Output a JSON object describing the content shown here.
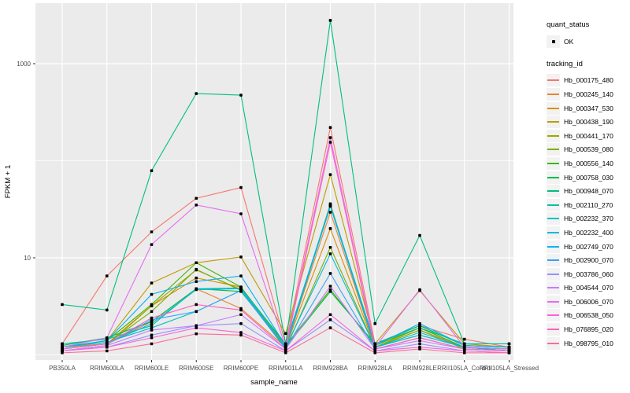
{
  "figure": {
    "background": "#FFFFFF",
    "panel_background": "#EBEBEB",
    "grid_color": "#FFFFFF",
    "point_color": "#000000",
    "axis_text_color": "#4D4D4D",
    "tick_color": "#333333"
  },
  "axes": {
    "x_title": "sample_name",
    "y_title": "FPKM + 1",
    "y_tick_labels": [
      "1000",
      "10"
    ]
  },
  "legend": {
    "quant_title": "quant_status",
    "quant_item_label": "OK",
    "tracking_title": "tracking_id"
  },
  "chart_data": {
    "type": "line",
    "title": "",
    "xlabel": "sample_name",
    "ylabel": "FPKM + 1",
    "y_scale": "log10",
    "y_major_ticks": [
      10,
      1000
    ],
    "y_minor_gridlines": [
      1,
      100
    ],
    "ylim_approx": [
      0.9,
      4200
    ],
    "grid": true,
    "legend_position": "right",
    "point_marker": "black point (quant_status = OK) on every value",
    "categories": [
      "PB350LA",
      "RRIM600LA",
      "RRIM600LE",
      "RRIM600SE",
      "RRIM600PE",
      "RRIM901LA",
      "RRIM928BA",
      "RRIM928LA",
      "RRIM928LE",
      "RRII105LA_Control",
      "RRII105LA_Stressed"
    ],
    "series": [
      {
        "name": "Hb_000175_480",
        "color": "#F8766D",
        "values": [
          1.3,
          6.5,
          18.5,
          41,
          53,
          1.3,
          220,
          1.3,
          2.0,
          1.45,
          1.2
        ]
      },
      {
        "name": "Hb_000245_140",
        "color": "#EA8331",
        "values": [
          1.2,
          1.3,
          2.2,
          4.8,
          3.0,
          1.2,
          29.5,
          1.2,
          1.8,
          1.2,
          1.15
        ]
      },
      {
        "name": "Hb_000347_530",
        "color": "#D89000",
        "values": [
          1.15,
          1.3,
          3.2,
          6.2,
          5.0,
          1.2,
          20,
          1.2,
          1.6,
          1.2,
          1.1
        ]
      },
      {
        "name": "Hb_000438_190",
        "color": "#C09B00",
        "values": [
          1.2,
          1.4,
          5.5,
          8.9,
          10.2,
          1.66,
          72,
          1.3,
          4.6,
          1.3,
          1.2
        ]
      },
      {
        "name": "Hb_000441_170",
        "color": "#A3A500",
        "values": [
          1.1,
          1.25,
          3.2,
          7.5,
          4.7,
          1.2,
          36,
          1.2,
          1.9,
          1.2,
          1.1
        ]
      },
      {
        "name": "Hb_000539_080",
        "color": "#7CAE00",
        "values": [
          1.15,
          1.3,
          2.8,
          7.6,
          4.6,
          1.15,
          12.8,
          1.2,
          1.8,
          1.15,
          1.1
        ]
      },
      {
        "name": "Hb_000556_140",
        "color": "#39B600",
        "values": [
          1.2,
          1.4,
          3.3,
          8.9,
          5.0,
          1.25,
          4.7,
          1.25,
          1.9,
          1.2,
          1.15
        ]
      },
      {
        "name": "Hb_000758_030",
        "color": "#00BB4E",
        "values": [
          1.25,
          1.5,
          2.2,
          4.8,
          4.5,
          1.2,
          4.5,
          1.3,
          2.0,
          1.25,
          1.2
        ]
      },
      {
        "name": "Hb_000948_070",
        "color": "#00BF7D",
        "values": [
          3.3,
          2.9,
          79,
          492,
          474,
          1.3,
          2790,
          2.1,
          17,
          1.3,
          1.3
        ]
      },
      {
        "name": "Hb_002110_270",
        "color": "#00C1A3",
        "values": [
          1.3,
          1.45,
          2.0,
          4.8,
          4.9,
          1.3,
          35,
          1.3,
          1.9,
          1.3,
          1.3
        ]
      },
      {
        "name": "Hb_002232_370",
        "color": "#00BFC4",
        "values": [
          1.2,
          1.35,
          1.9,
          2.8,
          4.6,
          1.2,
          34,
          1.2,
          1.7,
          1.2,
          1.15
        ]
      },
      {
        "name": "Hb_002232_400",
        "color": "#00BADE",
        "values": [
          1.15,
          1.3,
          2.1,
          4.7,
          4.8,
          1.2,
          11,
          1.2,
          1.6,
          1.2,
          1.1
        ]
      },
      {
        "name": "Hb_002749_070",
        "color": "#00B0F6",
        "values": [
          1.2,
          1.4,
          4.2,
          5.7,
          6.5,
          1.25,
          34,
          1.25,
          2.1,
          1.25,
          1.2
        ]
      },
      {
        "name": "Hb_002900_070",
        "color": "#35A2FF",
        "values": [
          1.15,
          1.3,
          2.3,
          2.8,
          4.6,
          1.15,
          6.9,
          1.15,
          1.5,
          1.15,
          1.1
        ]
      },
      {
        "name": "Hb_003786_060",
        "color": "#9590FF",
        "values": [
          1.1,
          1.2,
          1.6,
          2.0,
          2.1,
          1.1,
          2.3,
          1.1,
          1.3,
          1.1,
          1.05
        ]
      },
      {
        "name": "Hb_004544_070",
        "color": "#C77CFF",
        "values": [
          1.1,
          1.25,
          1.8,
          2.0,
          2.6,
          1.15,
          5.1,
          1.15,
          1.4,
          1.15,
          1.1
        ]
      },
      {
        "name": "Hb_006006_070",
        "color": "#E76BF3",
        "values": [
          1.2,
          1.5,
          13.7,
          35,
          28.4,
          1.2,
          173,
          1.2,
          4.7,
          1.2,
          1.15
        ]
      },
      {
        "name": "Hb_006538_050",
        "color": "#FA62DB",
        "values": [
          1.1,
          1.2,
          1.5,
          1.9,
          1.7,
          1.1,
          2.6,
          1.1,
          1.2,
          1.1,
          1.05
        ]
      },
      {
        "name": "Hb_076895_020",
        "color": "#FF62BC",
        "values": [
          1.15,
          1.3,
          2.4,
          3.3,
          2.9,
          1.15,
          155,
          1.15,
          1.5,
          1.15,
          1.1
        ]
      },
      {
        "name": "Hb_098795_010",
        "color": "#FF6A98",
        "values": [
          1.05,
          1.1,
          1.3,
          1.65,
          1.6,
          1.05,
          1.9,
          1.05,
          1.15,
          1.05,
          1.05
        ]
      }
    ]
  }
}
